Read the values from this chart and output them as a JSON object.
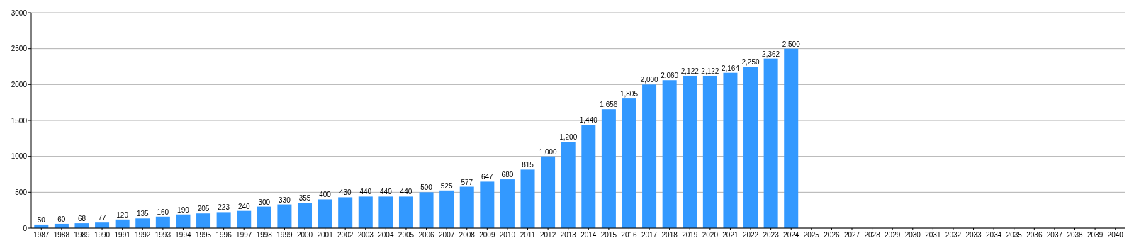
{
  "chart_data": {
    "type": "bar",
    "categories": [
      "1987",
      "1988",
      "1989",
      "1990",
      "1991",
      "1992",
      "1993",
      "1994",
      "1995",
      "1996",
      "1997",
      "1998",
      "1999",
      "2000",
      "2001",
      "2002",
      "2003",
      "2004",
      "2005",
      "2006",
      "2007",
      "2008",
      "2009",
      "2010",
      "2011",
      "2012",
      "2013",
      "2014",
      "2015",
      "2016",
      "2017",
      "2018",
      "2019",
      "2020",
      "2021",
      "2022",
      "2023",
      "2024",
      "2025",
      "2026",
      "2027",
      "2028",
      "2029",
      "2030",
      "2031",
      "2032",
      "2033",
      "2034",
      "2035",
      "2036",
      "2037",
      "2038",
      "2039",
      "2040"
    ],
    "values": [
      50,
      60,
      68,
      77,
      120,
      135,
      160,
      190,
      205,
      223,
      240,
      300,
      330,
      355,
      400,
      430,
      440,
      440,
      440,
      500,
      525,
      577,
      647,
      680,
      815,
      1000,
      1200,
      1440,
      1656,
      1805,
      2000,
      2060,
      2122,
      2122,
      2164,
      2250,
      2362,
      2500,
      null,
      null,
      null,
      null,
      null,
      null,
      null,
      null,
      null,
      null,
      null,
      null,
      null,
      null,
      null,
      null
    ],
    "value_labels": [
      "50",
      "60",
      "68",
      "77",
      "120",
      "135",
      "160",
      "190",
      "205",
      "223",
      "240",
      "300",
      "330",
      "355",
      "400",
      "430",
      "440",
      "440",
      "440",
      "500",
      "525",
      "577",
      "647",
      "680",
      "815",
      "1,000",
      "1,200",
      "1,440",
      "1,656",
      "1,805",
      "2,000",
      "2,060",
      "2,122",
      "2,122",
      "2,164",
      "2,250",
      "2,362",
      "2,500",
      null,
      null,
      null,
      null,
      null,
      null,
      null,
      null,
      null,
      null,
      null,
      null,
      null,
      null,
      null,
      null
    ],
    "color": "#3399ff",
    "ylim": [
      0,
      3000
    ],
    "yticks": [
      0,
      500,
      1000,
      1500,
      2000,
      2500,
      3000
    ],
    "grid": "y"
  }
}
